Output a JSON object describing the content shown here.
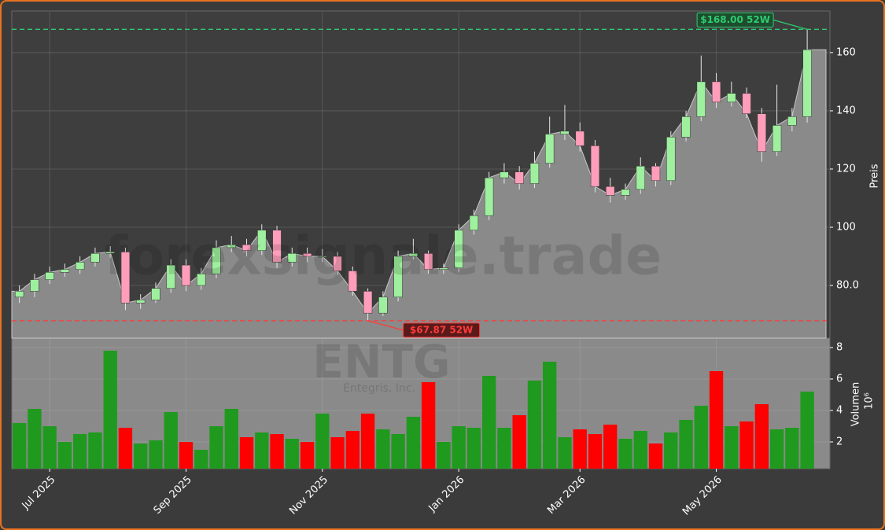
{
  "chart_data": {
    "type": "candlestick",
    "watermark": "forexsignale.trade",
    "symbol": "ENTG",
    "company": "Entegris, Inc.",
    "ylabel": "Preis",
    "categories": [
      null,
      null,
      "Jul 2025",
      null,
      null,
      null,
      null,
      null,
      null,
      null,
      null,
      "Sep 2025",
      null,
      null,
      null,
      null,
      null,
      null,
      null,
      null,
      "Nov 2025",
      null,
      null,
      null,
      null,
      null,
      null,
      null,
      null,
      "Jan 2026",
      null,
      null,
      null,
      null,
      null,
      null,
      null,
      "Mar 2026",
      null,
      null,
      null,
      null,
      null,
      null,
      null,
      null,
      "May 2026",
      null,
      null,
      null,
      null,
      null,
      null
    ],
    "open": [
      76,
      78,
      82,
      84.5,
      85.5,
      88,
      91,
      91.5,
      74,
      75,
      79,
      87,
      80,
      84,
      93,
      94,
      92,
      99,
      88,
      91,
      90,
      90,
      85,
      78,
      70.5,
      76,
      90,
      91,
      85.5,
      86,
      99,
      104,
      117,
      119,
      115,
      122,
      132,
      133,
      128,
      114,
      111,
      113,
      121,
      116,
      131,
      138,
      150,
      143,
      146,
      139,
      126,
      135,
      138
    ],
    "high": [
      80,
      84,
      86.5,
      87.5,
      90,
      93,
      93.5,
      93,
      77,
      81,
      89,
      89,
      86,
      95.5,
      97,
      96,
      101,
      100.5,
      93,
      93,
      92.5,
      91.5,
      86.5,
      79,
      78,
      92,
      96,
      92,
      87.5,
      101,
      106,
      119,
      122,
      121,
      126,
      138,
      142,
      136,
      130,
      117,
      115,
      124,
      122,
      133,
      140,
      159,
      153,
      150,
      148,
      141,
      149,
      141,
      168
    ],
    "low": [
      74,
      76,
      80.5,
      83,
      84,
      86.5,
      89.5,
      71.5,
      72,
      74,
      77.5,
      78,
      78.5,
      82.5,
      91.5,
      90,
      90.5,
      86,
      86.5,
      88,
      88,
      83.5,
      76.5,
      67.87,
      69.5,
      74.5,
      89,
      84,
      84,
      84.5,
      97.5,
      102.5,
      115,
      113,
      113.5,
      120.5,
      130,
      126,
      112,
      108.5,
      109.5,
      111.5,
      114,
      114.5,
      129.5,
      136.5,
      141,
      141.5,
      137.5,
      122.5,
      124.5,
      133,
      136
    ],
    "close": [
      78,
      82,
      84.5,
      85.5,
      88,
      91,
      91.5,
      74,
      75,
      79,
      87,
      80,
      84,
      93,
      94,
      92,
      99,
      88,
      91,
      90,
      90,
      85,
      78,
      70.5,
      76,
      90,
      91,
      85.5,
      86,
      99,
      104,
      117,
      119,
      115,
      122,
      132,
      133,
      128,
      114,
      111,
      113,
      121,
      116,
      131,
      138,
      150,
      143,
      146,
      139,
      126,
      135,
      138,
      161
    ],
    "ylim": [
      61.9,
      174.3
    ],
    "yticks": [
      {
        "value": 80,
        "label": "80.0"
      },
      100,
      120,
      140,
      160
    ],
    "hlines": [
      {
        "value": 168,
        "label": "$168.00 52W",
        "color": "#2ecc71"
      },
      {
        "value": 67.87,
        "label": "$67.87 52W",
        "color": "#ff3b3b"
      }
    ],
    "volume": {
      "label": "Volumen",
      "unit": "10⁶",
      "values": [
        3.2,
        4.1,
        3.0,
        2.0,
        2.5,
        2.6,
        7.8,
        2.9,
        1.9,
        2.1,
        3.9,
        2.0,
        1.5,
        3.0,
        4.1,
        2.3,
        2.6,
        2.5,
        2.2,
        2.0,
        3.8,
        2.3,
        2.7,
        3.8,
        2.8,
        2.5,
        3.6,
        5.8,
        2.0,
        3.0,
        2.9,
        6.2,
        2.9,
        3.7,
        5.9,
        7.1,
        2.3,
        2.8,
        2.5,
        3.1,
        2.2,
        2.7,
        1.9,
        2.6,
        3.4,
        4.3,
        6.5,
        3.0,
        3.3,
        4.4,
        2.8,
        2.9,
        5.2
      ],
      "ylim": [
        0.3,
        8.6
      ],
      "yticks": [
        2,
        4,
        6,
        8
      ]
    },
    "colors": {
      "up": "#9ef09e",
      "down": "#ff9ebb",
      "wick": "#e8e8e8",
      "area": "#8a8a8a",
      "volume_up": "#1f9a1f",
      "volume_down": "#ff0000"
    },
    "grid": true
  }
}
